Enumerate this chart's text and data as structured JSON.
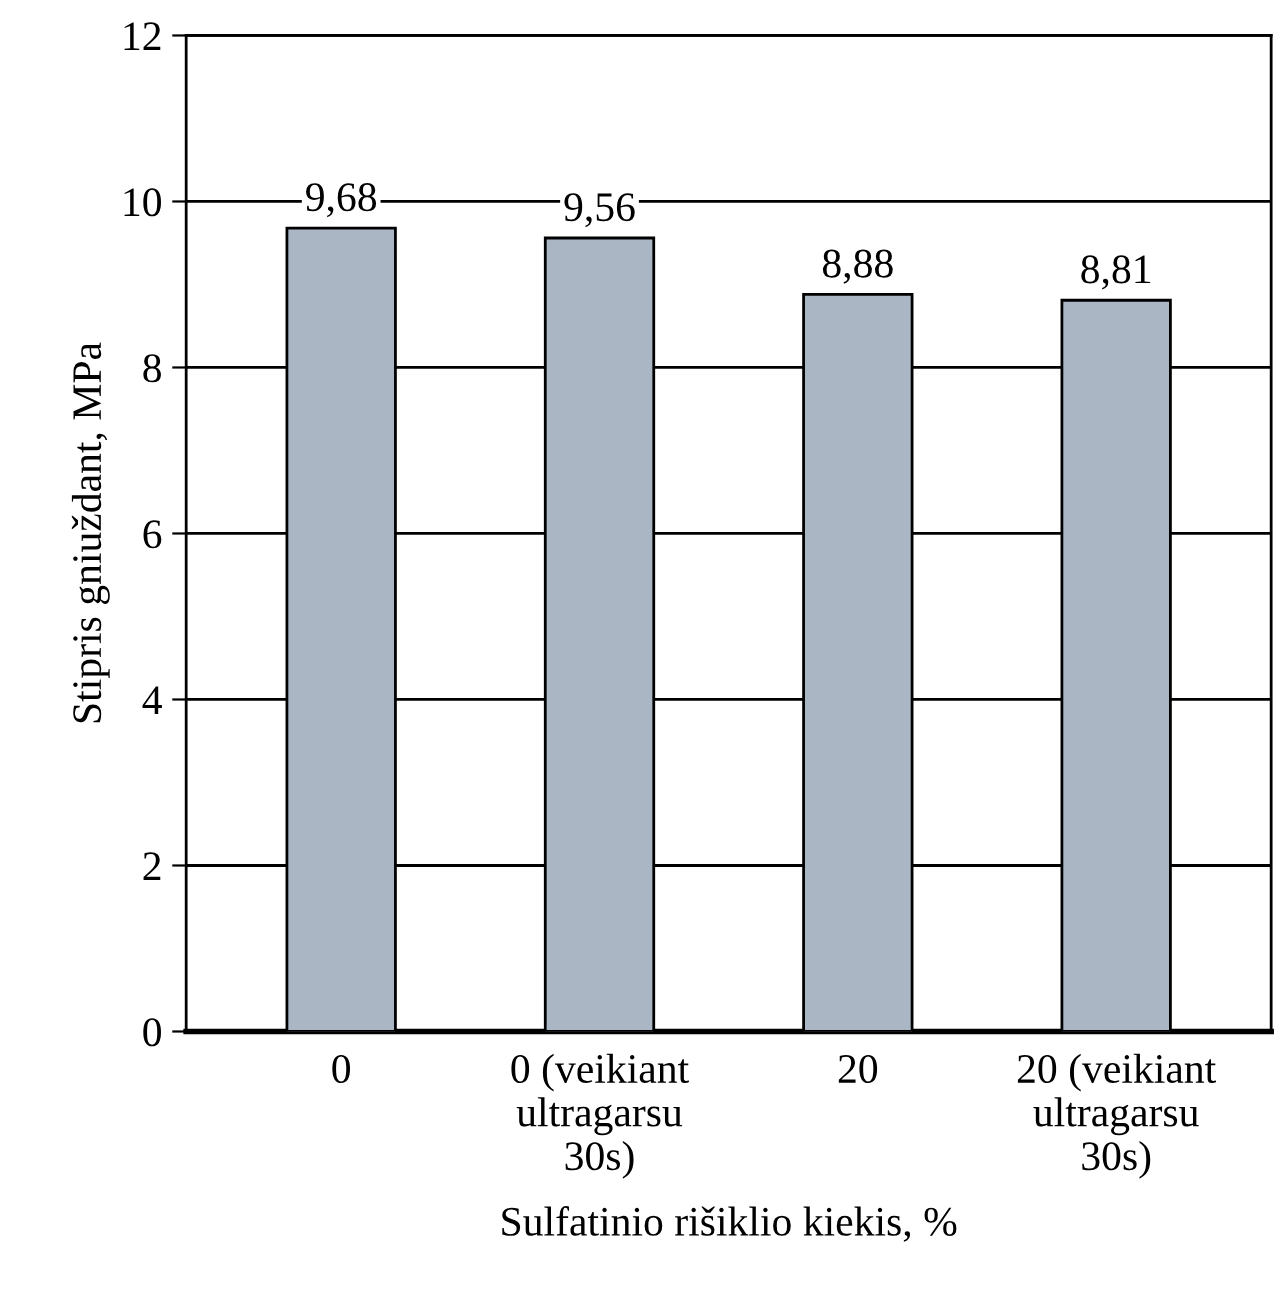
{
  "chart_data": {
    "type": "bar",
    "categories": [
      "0",
      "0 (veikiant\nultragarsu\n30s)",
      "20",
      "20 (veikiant\nultragarsu\n30s)"
    ],
    "values": [
      9.68,
      9.56,
      8.88,
      8.81
    ],
    "value_labels": [
      "9,68",
      "9,56",
      "8,88",
      "8,81"
    ],
    "color": "#aab6c4",
    "xlabel": "Sulfatinio rišiklio kiekis, %",
    "ylabel": "Stipris gniuždant, MPa",
    "ylim": [
      0,
      12
    ],
    "yticks": [
      0,
      2,
      4,
      6,
      8,
      10,
      12
    ],
    "grid": "y",
    "legend": false
  }
}
